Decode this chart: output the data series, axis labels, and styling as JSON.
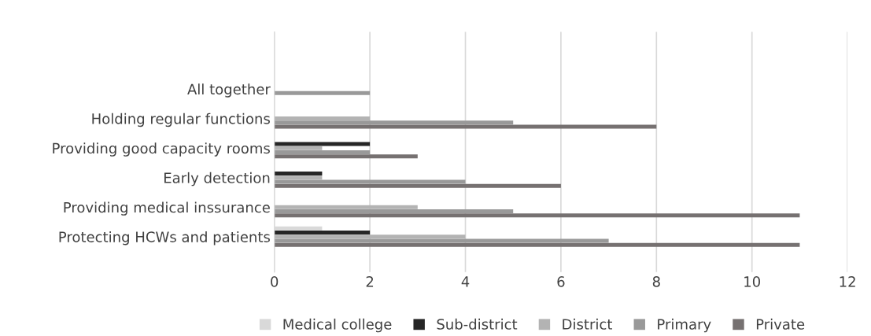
{
  "chart_data": {
    "type": "bar",
    "orientation": "horizontal",
    "categories": [
      "All together",
      "Holding regular functions",
      "Providing good capacity rooms",
      "Early detection",
      "Providing medical inssurance",
      "Protecting HCWs and patients"
    ],
    "series": [
      {
        "name": "Medical college",
        "color": "#d9d9d9",
        "values": [
          0,
          0,
          0,
          0,
          0,
          1
        ]
      },
      {
        "name": "Sub-district",
        "color": "#262626",
        "values": [
          0,
          0,
          2,
          1,
          0,
          2
        ]
      },
      {
        "name": "District",
        "color": "#b3b3b3",
        "values": [
          0,
          2,
          1,
          1,
          3,
          4
        ]
      },
      {
        "name": "Primary",
        "color": "#999999",
        "values": [
          2,
          5,
          2,
          4,
          5,
          7
        ]
      },
      {
        "name": "Private",
        "color": "#767171",
        "values": [
          0,
          8,
          3,
          6,
          11,
          11
        ]
      }
    ],
    "xlim": [
      0,
      12
    ],
    "xticks": [
      0,
      2,
      4,
      6,
      8,
      10,
      12
    ],
    "grid": "x",
    "legend": "bottom"
  }
}
